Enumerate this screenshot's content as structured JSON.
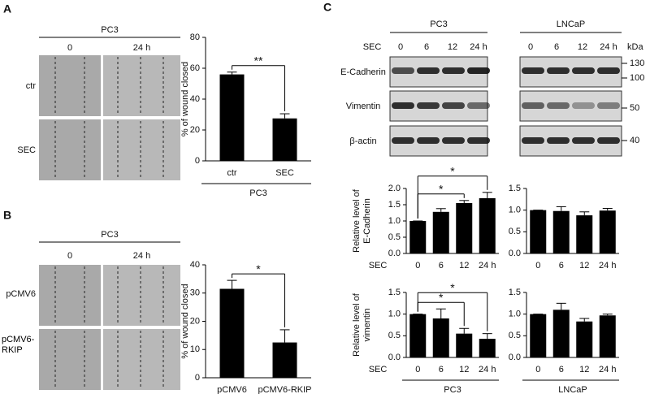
{
  "panel_labels": [
    "A",
    "B",
    "C"
  ],
  "microscopy": [
    {
      "group": "PC3",
      "columns": [
        "0",
        "24 h"
      ],
      "rows": [
        "ctr",
        "SEC"
      ]
    },
    {
      "group": "PC3",
      "columns": [
        "0",
        "24 h"
      ],
      "rows": [
        "pCMV6",
        "pCMV6-RKIP"
      ]
    }
  ],
  "blot": {
    "groups": [
      "PC3",
      "LNCaP"
    ],
    "row_label": "SEC",
    "lanes": [
      "0",
      "6",
      "12",
      "24 h"
    ],
    "unit": "kDa",
    "proteins": [
      "E-Cadherin",
      "Vimentin",
      "β-actin"
    ],
    "markers": [
      "130",
      "100",
      "50",
      "40"
    ]
  },
  "chart_data": [
    {
      "type": "bar",
      "categories": [
        "ctr",
        "SEC"
      ],
      "values": [
        56,
        27.5
      ],
      "errors": [
        1.5,
        3
      ],
      "color": "#000000",
      "ylim": [
        0,
        80
      ],
      "yticks": [
        0,
        20,
        40,
        60,
        80
      ],
      "ylabel": [
        "% of wound closed"
      ],
      "xlabel": "PC3",
      "annotations": [
        {
          "text": "**",
          "between": [
            "ctr",
            "SEC"
          ]
        }
      ]
    },
    {
      "type": "bar",
      "categories": [
        "pCMV6",
        "pCMV6-RKIP"
      ],
      "values": [
        31.5,
        12.5
      ],
      "errors": [
        3,
        4.5
      ],
      "color": "#000000",
      "ylim": [
        0,
        40
      ],
      "yticks": [
        0,
        10,
        20,
        30,
        40
      ],
      "ylabel": [
        "% of wound closed"
      ],
      "annotations": [
        {
          "text": "*",
          "between": [
            "pCMV6",
            "pCMV6-RKIP"
          ]
        }
      ]
    },
    {
      "type": "bar",
      "categories": [
        "0",
        "6",
        "12",
        "24 h"
      ],
      "values": [
        1.0,
        1.28,
        1.55,
        1.7
      ],
      "errors": [
        0,
        0.1,
        0.08,
        0.18
      ],
      "color": "#000000",
      "ylim": [
        0,
        2
      ],
      "yticks": [
        {
          "value": 0,
          "label": "0.0"
        },
        0.5,
        {
          "value": 1,
          "label": "1.0"
        },
        1.5,
        {
          "value": 2,
          "label": "2.0"
        }
      ],
      "ylabel": [
        "Relative level of",
        "E-Cadherin"
      ],
      "x_row_label": "SEC",
      "annotations": [
        {
          "text": "*",
          "between": [
            "0",
            "12"
          ]
        },
        {
          "text": "*",
          "between": [
            "0",
            "24 h"
          ]
        }
      ]
    },
    {
      "type": "bar",
      "categories": [
        "0",
        "6",
        "12",
        "24 h"
      ],
      "values": [
        1.0,
        0.98,
        0.88,
        0.99
      ],
      "errors": [
        0,
        0.1,
        0.08,
        0.05
      ],
      "color": "#000000",
      "ylim": [
        0,
        1.5
      ],
      "yticks": [
        {
          "value": 0,
          "label": "0.0"
        },
        0.5,
        {
          "value": 1,
          "label": "1.0"
        },
        1.5
      ]
    },
    {
      "type": "bar",
      "categories": [
        "0",
        "6",
        "12",
        "24 h"
      ],
      "values": [
        1.0,
        0.9,
        0.55,
        0.43
      ],
      "errors": [
        0,
        0.22,
        0.12,
        0.12
      ],
      "color": "#000000",
      "ylim": [
        0,
        1.5
      ],
      "yticks": [
        {
          "value": 0,
          "label": "0.0"
        },
        0.5,
        {
          "value": 1,
          "label": "1.0"
        },
        1.5
      ],
      "ylabel": [
        "Relative level of",
        "vimentin"
      ],
      "x_row_label": "SEC",
      "xlabel": "PC3",
      "annotations": [
        {
          "text": "*",
          "between": [
            "0",
            "12"
          ]
        },
        {
          "text": "*",
          "between": [
            "0",
            "24 h"
          ]
        }
      ]
    },
    {
      "type": "bar",
      "categories": [
        "0",
        "6",
        "12",
        "24 h"
      ],
      "values": [
        1.0,
        1.1,
        0.83,
        0.97
      ],
      "errors": [
        0,
        0.15,
        0.07,
        0.03
      ],
      "color": "#000000",
      "ylim": [
        0,
        1.5
      ],
      "yticks": [
        {
          "value": 0,
          "label": "0.0"
        },
        0.5,
        {
          "value": 1,
          "label": "1.0"
        },
        1.5
      ],
      "xlabel": "LNCaP"
    }
  ]
}
